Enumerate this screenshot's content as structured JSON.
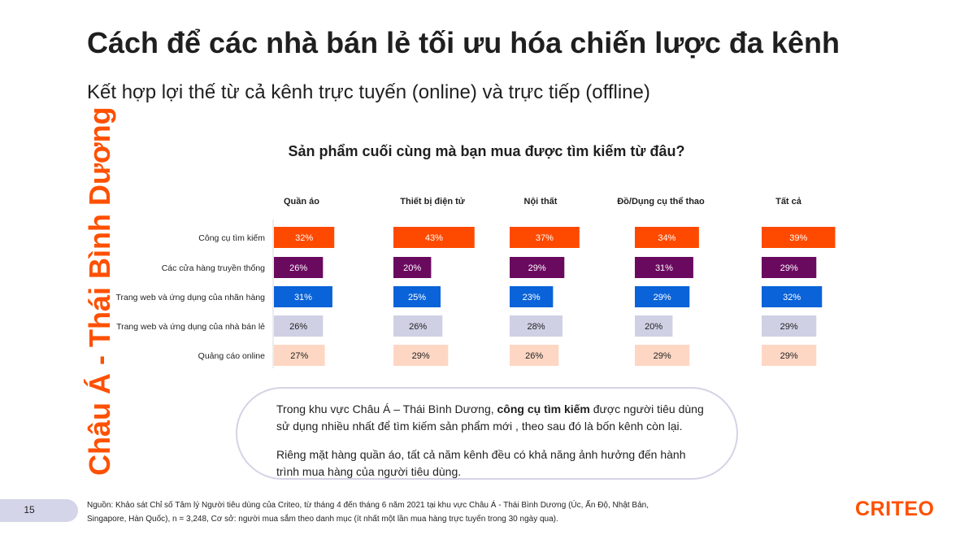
{
  "slide": {
    "title": "Cách để các nhà bán lẻ tối ưu hóa chiến lược đa kênh",
    "subtitle": "Kết hợp lợi thế từ cả kênh trực tuyến (online) và trực tiếp (offline)",
    "side_label": "Châu Á - Thái Bình Dương",
    "page_number": "15",
    "logo": "CRITEO"
  },
  "callout": {
    "p1_pre": "Trong khu vực Châu Á – Thái Bình Dương, ",
    "p1_bold": "công cụ tìm kiếm",
    "p1_post": " được người tiêu dùng sử dụng nhiều nhất để tìm kiếm sản phẩm mới , theo sau đó là bốn kênh còn lại.",
    "p2": "Riêng mặt hàng quần áo, tất cả năm kênh đều có khả năng ảnh hưởng đến hành trình mua hàng của người tiêu dùng."
  },
  "source": {
    "line1": "Nguồn: Khảo sát Chỉ số Tâm lý Người tiêu dùng của Criteo, từ tháng 4 đến tháng 6 năm 2021 tại khu vực Châu Á - Thái Bình Dương (Úc, Ấn Độ, Nhật Bản,",
    "line2": "Singapore, Hàn Quốc), n = 3,248, Cơ sở: người mua sắm theo danh mục (ít nhất một lần mua hàng trực tuyến trong 30 ngày qua)."
  },
  "chart_data": {
    "type": "bar",
    "orientation": "horizontal-small-multiples",
    "title": "Sản phẩm cuối cùng mà bạn mua được tìm kiếm từ đâu?",
    "categories": [
      "Công cụ tìm kiếm",
      "Các cửa hàng truyền thống",
      "Trang web và ứng dụng của nhãn hàng",
      "Trang web và ứng dụng của nhà bán lẻ",
      "Quảng cáo online"
    ],
    "category_colors": [
      "#fe4a00",
      "#6a0a5f",
      "#0a63d8",
      "#cfd0e4",
      "#fdd7c4"
    ],
    "label_colors": [
      "#ffffff",
      "#ffffff",
      "#ffffff",
      "#1f1f1f",
      "#1f1f1f"
    ],
    "unit": "%",
    "panels": [
      {
        "name": "Quần áo",
        "values": [
          32,
          26,
          31,
          26,
          27
        ]
      },
      {
        "name": "Thiết bị điện tử",
        "values": [
          43,
          20,
          25,
          26,
          29
        ]
      },
      {
        "name": "Nội thất",
        "values": [
          37,
          29,
          23,
          28,
          26
        ]
      },
      {
        "name": "Đồ/Dụng cụ thể thao",
        "values": [
          34,
          31,
          29,
          20,
          29
        ]
      },
      {
        "name": "Tất cả",
        "values": [
          39,
          29,
          32,
          29,
          29
        ]
      }
    ]
  }
}
